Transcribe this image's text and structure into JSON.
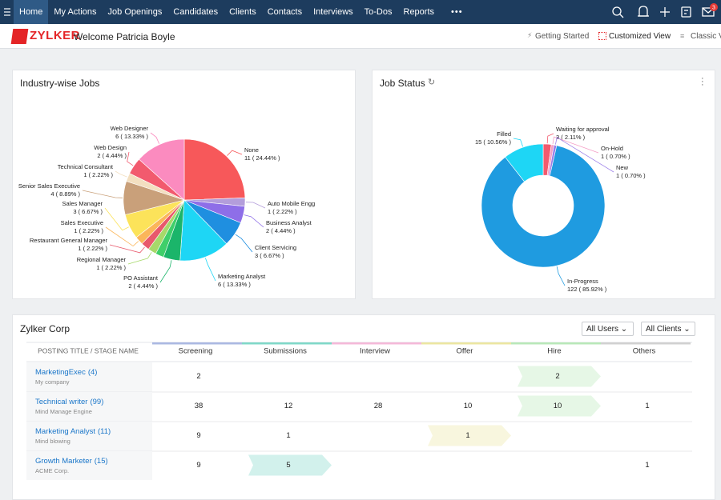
{
  "nav": {
    "items": [
      "Home",
      "My Actions",
      "Job Openings",
      "Candidates",
      "Clients",
      "Contacts",
      "Interviews",
      "To-Dos",
      "Reports"
    ],
    "active": 0,
    "more": "•••",
    "badge": "3"
  },
  "header": {
    "logo": "ZYLKER",
    "welcome": "Welcome Patricia Boyle",
    "links": [
      "Getting Started",
      "Customized View",
      "Classic V"
    ]
  },
  "chart_data": [
    {
      "type": "pie",
      "title": "Industry-wise Jobs",
      "categories": [
        "None",
        "Auto Mobile Engg",
        "Business Analyst",
        "Client Servicing",
        "Marketing Analyst",
        "PO Assistant",
        null,
        "Regional Manager",
        "Restaurant General Manager",
        "Sales Executive",
        "Sales Manager",
        "Senior Sales Executive",
        "Technical Consultant",
        "Web Design",
        "Web Designer"
      ],
      "values": [
        11,
        1,
        2,
        3,
        6,
        2,
        1,
        1,
        1,
        1,
        3,
        4,
        1,
        2,
        6
      ],
      "value_labels": [
        "11 ( 24.44% )",
        "1 ( 2.22% )",
        "2 ( 4.44% )",
        "3 ( 6.67% )",
        "6 ( 13.33% )",
        "2 ( 4.44% )",
        null,
        "1 ( 2.22% )",
        "1 ( 2.22% )",
        "1 ( 2.22% )",
        "3 ( 6.67% )",
        "4 ( 8.89% )",
        "1 ( 2.22% )",
        "2 ( 4.44% )",
        "6 ( 13.33% )"
      ],
      "colors": [
        "#f7585a",
        "#b39ddb",
        "#8e6ee8",
        "#1f8fe0",
        "#1ed6f5",
        "#1bb56a",
        "#3fcf6a",
        "#a6d96a",
        "#e8596c",
        "#fbb65a",
        "#fce35a",
        "#c9a07a",
        "#f3dfc0",
        "#f25a6e",
        "#fb8bbf"
      ]
    },
    {
      "type": "donut",
      "title": "Job Status",
      "categories": [
        "Waiting for approval",
        "On-Hold",
        "New",
        "In-Progress",
        "Filled"
      ],
      "values": [
        3,
        1,
        1,
        122,
        15
      ],
      "value_labels": [
        "3 ( 2.11% )",
        "1 ( 0.70% )",
        "1 ( 0.70% )",
        "122 ( 85.92% )",
        "15 ( 10.56% )"
      ],
      "colors": [
        "#f25a6e",
        "#f59fc6",
        "#9a7de8",
        "#1f9be0",
        "#1ed6f5"
      ]
    }
  ],
  "table": {
    "title": "Zylker Corp",
    "filters": [
      "All Users",
      "All Clients"
    ],
    "columns": [
      "POSTING TITLE / STAGE NAME",
      "Screening",
      "Submissions",
      "Interview",
      "Offer",
      "Hire",
      "Others"
    ],
    "stage_colors": [
      "#aab8e2",
      "#7fd8c8",
      "#f4b8d8",
      "#ece6a0",
      "#b8e8b8",
      "#d0d0d0"
    ],
    "rows": [
      {
        "title": "MarketingExec",
        "count": "(4)",
        "company": "My company",
        "cells": [
          2,
          null,
          null,
          null,
          2,
          null
        ],
        "highlight": 4
      },
      {
        "title": "Technical writer",
        "count": "(99)",
        "company": "Mind Manage Engine",
        "cells": [
          38,
          12,
          28,
          10,
          10,
          1
        ],
        "highlight": 4
      },
      {
        "title": "Marketing Analyst",
        "count": "(11)",
        "company": "Mind blowing",
        "cells": [
          9,
          1,
          null,
          1,
          null,
          null
        ],
        "highlight": 3
      },
      {
        "title": "Growth Marketer",
        "count": "(15)",
        "company": "ACME Corp.",
        "cells": [
          9,
          5,
          null,
          null,
          null,
          1
        ],
        "highlight": 1
      }
    ]
  }
}
